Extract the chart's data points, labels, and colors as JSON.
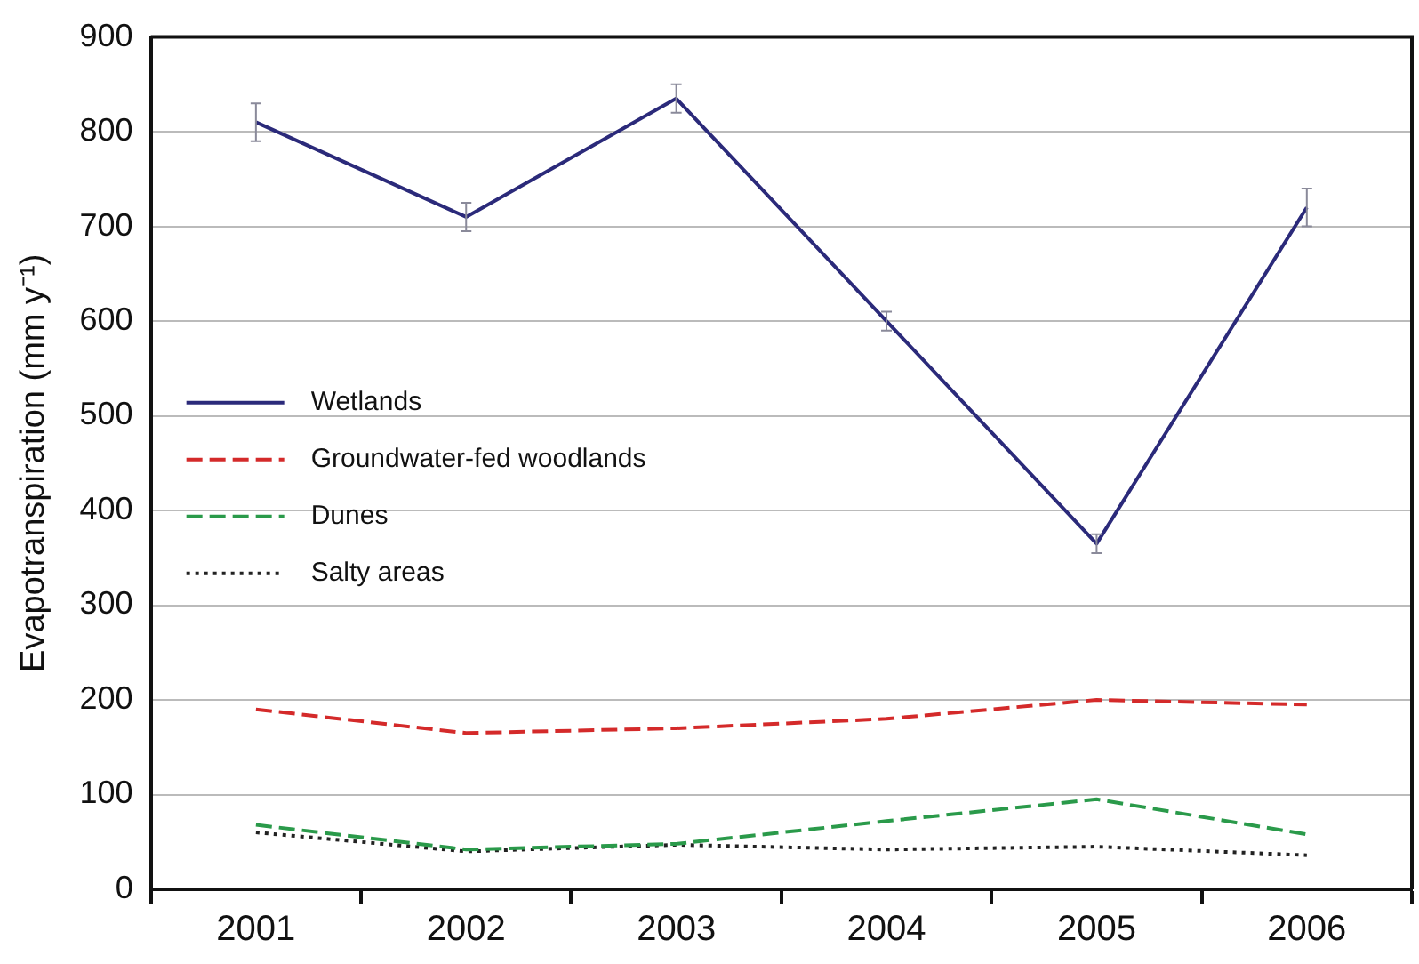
{
  "chart_data": {
    "type": "line",
    "ylabel": "Evapotranspiration (mm y⁻¹)",
    "categories": [
      "2001",
      "2002",
      "2003",
      "2004",
      "2005",
      "2006"
    ],
    "ylim": [
      0,
      900
    ],
    "yticks": [
      0,
      100,
      200,
      300,
      400,
      500,
      600,
      700,
      800,
      900
    ],
    "grid": "y",
    "legend": "left",
    "marker": "none",
    "series": [
      {
        "name": "Wetlands",
        "color": "#2b2a7a",
        "line_style": "solid",
        "values": [
          810,
          710,
          835,
          600,
          365,
          720
        ],
        "errors": [
          20,
          15,
          15,
          10,
          10,
          20
        ]
      },
      {
        "name": "Groundwater-fed woodlands",
        "color": "#d42a2a",
        "line_style": "dashed",
        "values": [
          190,
          165,
          170,
          180,
          200,
          195
        ]
      },
      {
        "name": "Dunes",
        "color": "#2a9a4a",
        "line_style": "dashed",
        "values": [
          68,
          42,
          48,
          72,
          95,
          58
        ]
      },
      {
        "name": "Salty areas",
        "color": "#222222",
        "line_style": "dotted",
        "values": [
          60,
          40,
          47,
          42,
          45,
          36
        ]
      }
    ]
  }
}
